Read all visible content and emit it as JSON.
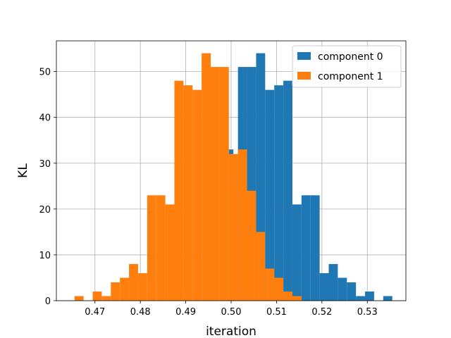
{
  "chart_data": {
    "type": "histogram",
    "xlabel": "iteration",
    "ylabel": "KL",
    "xlim": [
      0.4615,
      0.5385
    ],
    "ylim": [
      0,
      56.7
    ],
    "xticks": [
      0.47,
      0.48,
      0.49,
      0.5,
      0.51,
      0.52,
      0.53
    ],
    "xtick_labels": [
      "0.47",
      "0.48",
      "0.49",
      "0.50",
      "0.51",
      "0.52",
      "0.53"
    ],
    "yticks": [
      0,
      10,
      20,
      30,
      40,
      50
    ],
    "ytick_labels": [
      "0",
      "10",
      "20",
      "30",
      "40",
      "50"
    ],
    "grid": true,
    "legend_position": "top-right",
    "series": [
      {
        "name": "component 0",
        "color": "#1f77b4",
        "bins": [
          {
            "x0": 0.4995,
            "x1": 0.5005,
            "value": 33
          },
          {
            "x0": 0.5015,
            "x1": 0.5035,
            "value": 51
          },
          {
            "x0": 0.5035,
            "x1": 0.5055,
            "value": 51
          },
          {
            "x0": 0.5055,
            "x1": 0.5075,
            "value": 54
          },
          {
            "x0": 0.5075,
            "x1": 0.5095,
            "value": 46
          },
          {
            "x0": 0.5095,
            "x1": 0.5115,
            "value": 47
          },
          {
            "x0": 0.5115,
            "x1": 0.5135,
            "value": 48
          },
          {
            "x0": 0.5135,
            "x1": 0.5155,
            "value": 21
          },
          {
            "x0": 0.5155,
            "x1": 0.5175,
            "value": 23
          },
          {
            "x0": 0.5175,
            "x1": 0.5195,
            "value": 23
          },
          {
            "x0": 0.5195,
            "x1": 0.5215,
            "value": 6
          },
          {
            "x0": 0.5215,
            "x1": 0.5235,
            "value": 8
          },
          {
            "x0": 0.5235,
            "x1": 0.5255,
            "value": 5
          },
          {
            "x0": 0.5255,
            "x1": 0.5275,
            "value": 4
          },
          {
            "x0": 0.5275,
            "x1": 0.5295,
            "value": 1
          },
          {
            "x0": 0.5295,
            "x1": 0.5315,
            "value": 2
          },
          {
            "x0": 0.5335,
            "x1": 0.5355,
            "value": 1
          }
        ]
      },
      {
        "name": "component 1",
        "color": "#ff7f0e",
        "bins": [
          {
            "x0": 0.4655,
            "x1": 0.4675,
            "value": 1
          },
          {
            "x0": 0.4695,
            "x1": 0.4715,
            "value": 2
          },
          {
            "x0": 0.4715,
            "x1": 0.4735,
            "value": 1
          },
          {
            "x0": 0.4735,
            "x1": 0.4755,
            "value": 4
          },
          {
            "x0": 0.4755,
            "x1": 0.4775,
            "value": 5
          },
          {
            "x0": 0.4775,
            "x1": 0.4795,
            "value": 8
          },
          {
            "x0": 0.4795,
            "x1": 0.4815,
            "value": 6
          },
          {
            "x0": 0.4815,
            "x1": 0.4835,
            "value": 23
          },
          {
            "x0": 0.4835,
            "x1": 0.4855,
            "value": 23
          },
          {
            "x0": 0.4855,
            "x1": 0.4875,
            "value": 21
          },
          {
            "x0": 0.4875,
            "x1": 0.4895,
            "value": 48
          },
          {
            "x0": 0.4895,
            "x1": 0.4915,
            "value": 47
          },
          {
            "x0": 0.4915,
            "x1": 0.4935,
            "value": 46
          },
          {
            "x0": 0.4935,
            "x1": 0.4955,
            "value": 54
          },
          {
            "x0": 0.4955,
            "x1": 0.4975,
            "value": 51
          },
          {
            "x0": 0.4975,
            "x1": 0.4995,
            "value": 51
          },
          {
            "x0": 0.4995,
            "x1": 0.5015,
            "value": 32
          },
          {
            "x0": 0.5015,
            "x1": 0.5035,
            "value": 33
          },
          {
            "x0": 0.5035,
            "x1": 0.5055,
            "value": 24
          },
          {
            "x0": 0.5055,
            "x1": 0.5075,
            "value": 15
          },
          {
            "x0": 0.5075,
            "x1": 0.5095,
            "value": 7
          },
          {
            "x0": 0.5095,
            "x1": 0.5115,
            "value": 5
          },
          {
            "x0": 0.5115,
            "x1": 0.5135,
            "value": 2
          },
          {
            "x0": 0.5135,
            "x1": 0.5155,
            "value": 1
          }
        ]
      }
    ]
  }
}
